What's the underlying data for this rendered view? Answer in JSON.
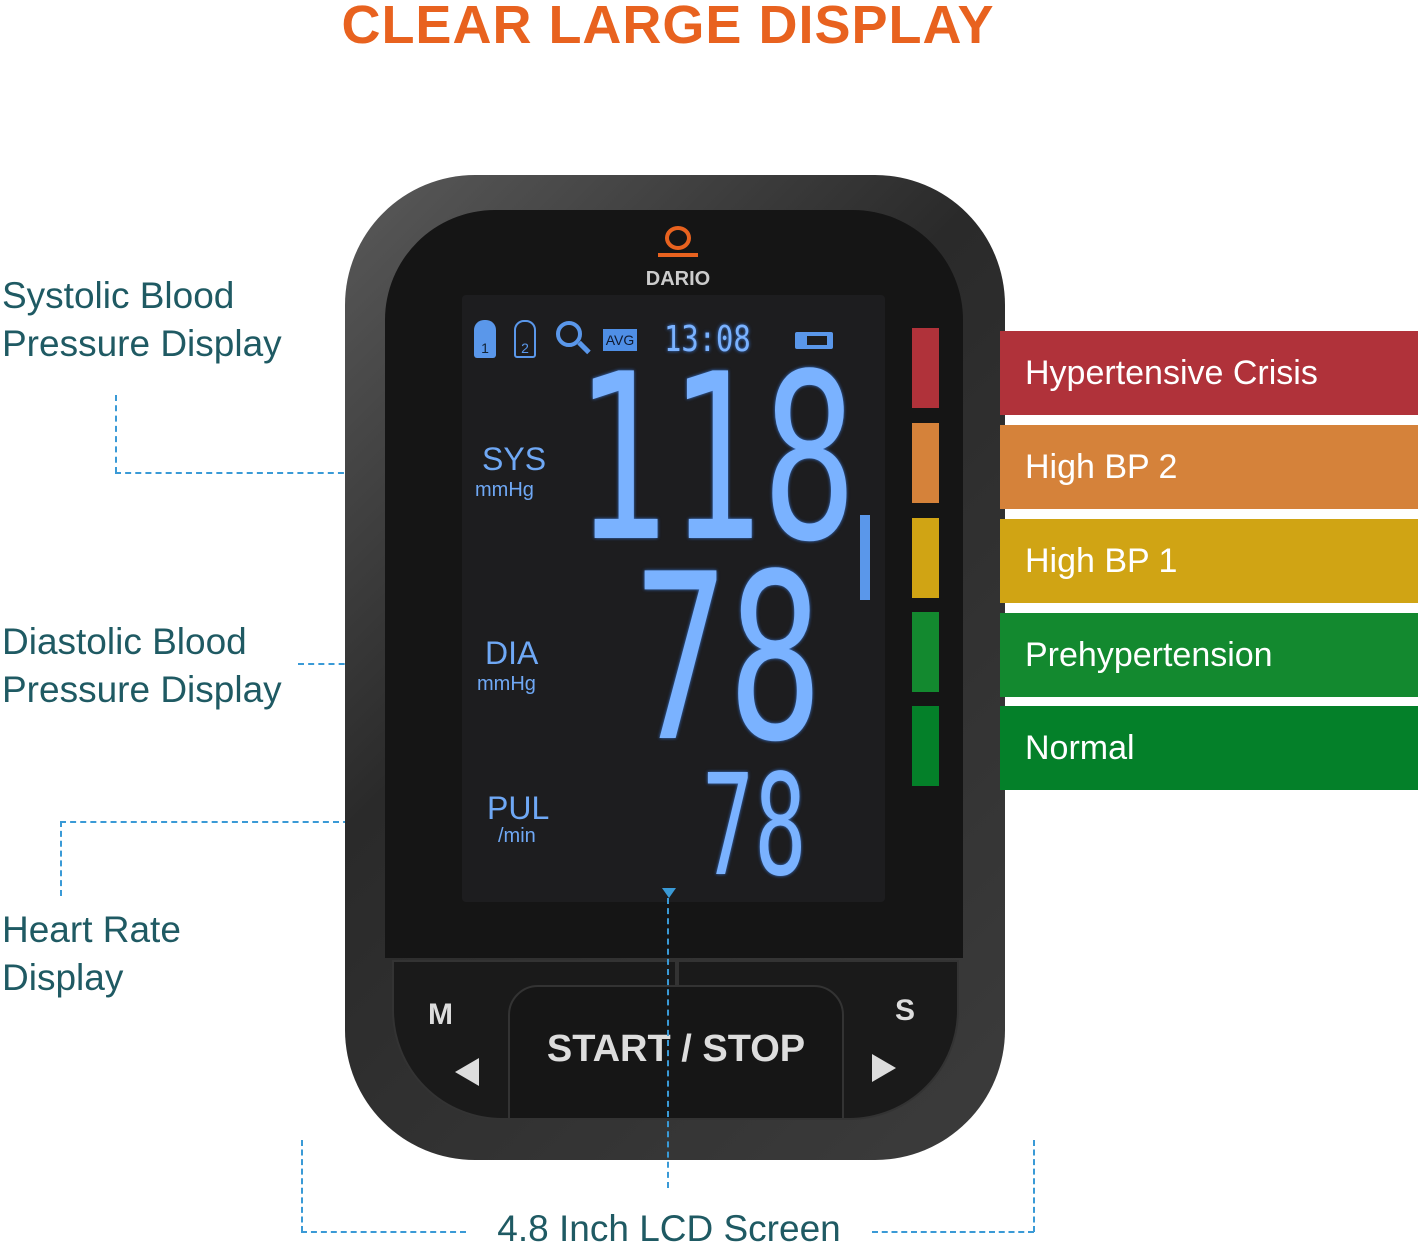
{
  "title": "CLEAR LARGE DISPLAY",
  "callouts": {
    "systolic": [
      "Systolic Blood",
      "Pressure Display"
    ],
    "diastolic": [
      "Diastolic Blood",
      "Pressure Display"
    ],
    "heart_rate": [
      "Heart Rate",
      "Display"
    ],
    "screen": "4.8 Inch LCD Screen"
  },
  "device": {
    "brand": "DARIO",
    "lcd": {
      "avg": "AVG",
      "user1": "1",
      "user2": "2",
      "time": "13:08",
      "sys_label": "SYS",
      "sys_unit": "mmHg",
      "sys_value": "118",
      "dia_label": "DIA",
      "dia_unit": "mmHg",
      "dia_value": "78",
      "pul_label": "PUL",
      "pul_unit": "/min",
      "pul_value": "78"
    },
    "buttons": {
      "memory": "M",
      "start_stop": "START / STOP",
      "set": "S"
    }
  },
  "bp_scale": [
    {
      "label": "Hypertensive Crisis",
      "color": "#b0323a"
    },
    {
      "label": "High BP 2",
      "color": "#d5823a"
    },
    {
      "label": "High BP 1",
      "color": "#d0a414"
    },
    {
      "label": "Prehypertension",
      "color": "#13892f"
    },
    {
      "label": "Normal",
      "color": "#048029"
    }
  ]
}
